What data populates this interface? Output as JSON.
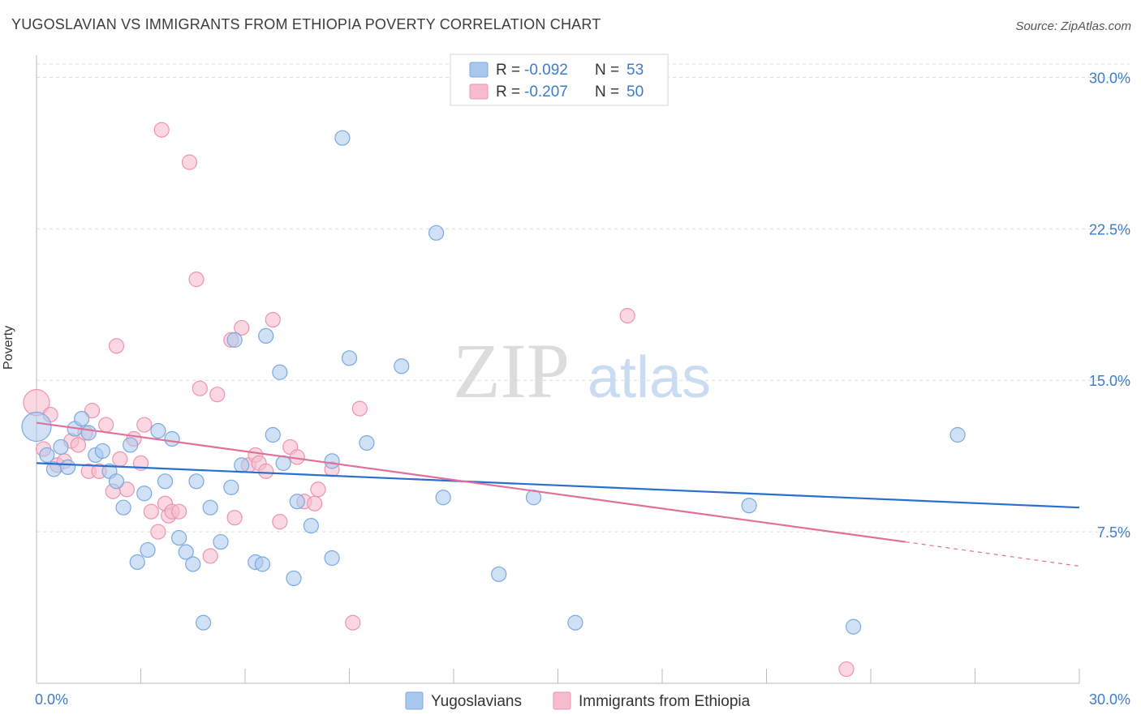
{
  "title": "YUGOSLAVIAN VS IMMIGRANTS FROM ETHIOPIA POVERTY CORRELATION CHART",
  "source": "Source: ZipAtlas.com",
  "watermark": {
    "zip": "ZIP",
    "atlas": "atlas"
  },
  "colors": {
    "blue_fill": "#a9c8ef",
    "blue_stroke": "#7aa8df",
    "blue_line": "#2a6fcf",
    "pink_fill": "#f6bccd",
    "pink_stroke": "#ee93ad",
    "pink_line": "#e0709a",
    "grid": "#dcdcdc",
    "axis_text": "#3d7cc9"
  },
  "legend": {
    "rows": [
      {
        "r_label": "R =",
        "r_value": "-0.092",
        "n_label": "N =",
        "n_value": "53"
      },
      {
        "r_label": "R =",
        "r_value": "-0.207",
        "n_label": "N =",
        "n_value": "50"
      }
    ]
  },
  "chart_data": {
    "type": "scatter",
    "title": "YUGOSLAVIAN VS IMMIGRANTS FROM ETHIOPIA POVERTY CORRELATION CHART",
    "xlabel": "",
    "ylabel": "Poverty",
    "xlim": [
      0,
      30
    ],
    "ylim": [
      0,
      30.7
    ],
    "x_tick_labels": [
      "0.0%",
      "30.0%"
    ],
    "y_ticks": [
      7.5,
      15.0,
      22.5,
      30.0
    ],
    "y_tick_labels": [
      "7.5%",
      "15.0%",
      "22.5%",
      "30.0%"
    ],
    "series": [
      {
        "name": "Yugoslavians",
        "trend": {
          "x": [
            0,
            30
          ],
          "y": [
            10.9,
            8.7
          ]
        },
        "points": [
          [
            0.0,
            12.7
          ],
          [
            0.3,
            11.3
          ],
          [
            0.5,
            10.6
          ],
          [
            0.7,
            11.7
          ],
          [
            0.9,
            10.7
          ],
          [
            1.1,
            12.6
          ],
          [
            1.3,
            13.1
          ],
          [
            1.5,
            12.4
          ],
          [
            1.7,
            11.3
          ],
          [
            1.9,
            11.5
          ],
          [
            2.1,
            10.5
          ],
          [
            2.3,
            10.0
          ],
          [
            2.5,
            8.7
          ],
          [
            2.7,
            11.8
          ],
          [
            2.9,
            6.0
          ],
          [
            3.1,
            9.4
          ],
          [
            3.2,
            6.6
          ],
          [
            3.5,
            12.5
          ],
          [
            3.7,
            10.0
          ],
          [
            3.9,
            12.1
          ],
          [
            4.1,
            7.2
          ],
          [
            4.3,
            6.5
          ],
          [
            4.5,
            5.9
          ],
          [
            4.6,
            10.0
          ],
          [
            4.8,
            3.0
          ],
          [
            5.0,
            8.7
          ],
          [
            5.3,
            7.0
          ],
          [
            5.6,
            9.7
          ],
          [
            5.7,
            17.0
          ],
          [
            5.9,
            10.8
          ],
          [
            6.3,
            6.0
          ],
          [
            6.5,
            5.9
          ],
          [
            6.6,
            17.2
          ],
          [
            6.8,
            12.3
          ],
          [
            7.0,
            15.4
          ],
          [
            7.1,
            10.9
          ],
          [
            7.4,
            5.2
          ],
          [
            7.5,
            9.0
          ],
          [
            7.9,
            7.8
          ],
          [
            8.5,
            11.0
          ],
          [
            8.5,
            6.2
          ],
          [
            8.8,
            27.0
          ],
          [
            9.0,
            16.1
          ],
          [
            9.5,
            11.9
          ],
          [
            10.5,
            15.7
          ],
          [
            11.5,
            22.3
          ],
          [
            11.7,
            9.2
          ],
          [
            13.3,
            5.4
          ],
          [
            14.3,
            9.2
          ],
          [
            15.5,
            3.0
          ],
          [
            20.5,
            8.8
          ],
          [
            23.5,
            2.8
          ],
          [
            26.5,
            12.3
          ]
        ]
      },
      {
        "name": "Immigrants from Ethiopia",
        "trend": {
          "x": [
            0,
            25
          ],
          "y": [
            12.9,
            7.0
          ]
        },
        "trend_dashed": {
          "x": [
            25,
            30
          ],
          "y": [
            7.0,
            5.8
          ]
        },
        "points": [
          [
            0.0,
            13.9
          ],
          [
            0.2,
            11.6
          ],
          [
            0.4,
            13.3
          ],
          [
            0.6,
            10.8
          ],
          [
            0.8,
            11.0
          ],
          [
            1.0,
            12.0
          ],
          [
            1.2,
            11.8
          ],
          [
            1.4,
            12.4
          ],
          [
            1.5,
            10.5
          ],
          [
            1.6,
            13.5
          ],
          [
            1.8,
            10.5
          ],
          [
            2.0,
            12.8
          ],
          [
            2.2,
            9.5
          ],
          [
            2.3,
            16.7
          ],
          [
            2.4,
            11.1
          ],
          [
            2.6,
            9.6
          ],
          [
            2.8,
            12.1
          ],
          [
            3.0,
            10.9
          ],
          [
            3.1,
            12.8
          ],
          [
            3.3,
            8.5
          ],
          [
            3.5,
            7.5
          ],
          [
            3.6,
            27.4
          ],
          [
            3.7,
            8.9
          ],
          [
            3.8,
            8.3
          ],
          [
            3.9,
            8.5
          ],
          [
            4.1,
            8.5
          ],
          [
            4.4,
            25.8
          ],
          [
            4.6,
            20.0
          ],
          [
            4.7,
            14.6
          ],
          [
            5.0,
            6.3
          ],
          [
            5.2,
            14.3
          ],
          [
            5.6,
            17.0
          ],
          [
            5.7,
            8.2
          ],
          [
            5.9,
            17.6
          ],
          [
            6.1,
            10.8
          ],
          [
            6.3,
            11.3
          ],
          [
            6.4,
            10.9
          ],
          [
            6.6,
            10.5
          ],
          [
            6.8,
            18.0
          ],
          [
            7.0,
            8.0
          ],
          [
            7.3,
            11.7
          ],
          [
            7.5,
            11.2
          ],
          [
            7.7,
            9.0
          ],
          [
            8.0,
            8.9
          ],
          [
            8.1,
            9.6
          ],
          [
            8.5,
            10.6
          ],
          [
            9.1,
            3.0
          ],
          [
            9.3,
            13.6
          ],
          [
            17.0,
            18.2
          ],
          [
            23.3,
            0.7
          ]
        ]
      }
    ],
    "legend_position": "top-center",
    "grid": true
  }
}
